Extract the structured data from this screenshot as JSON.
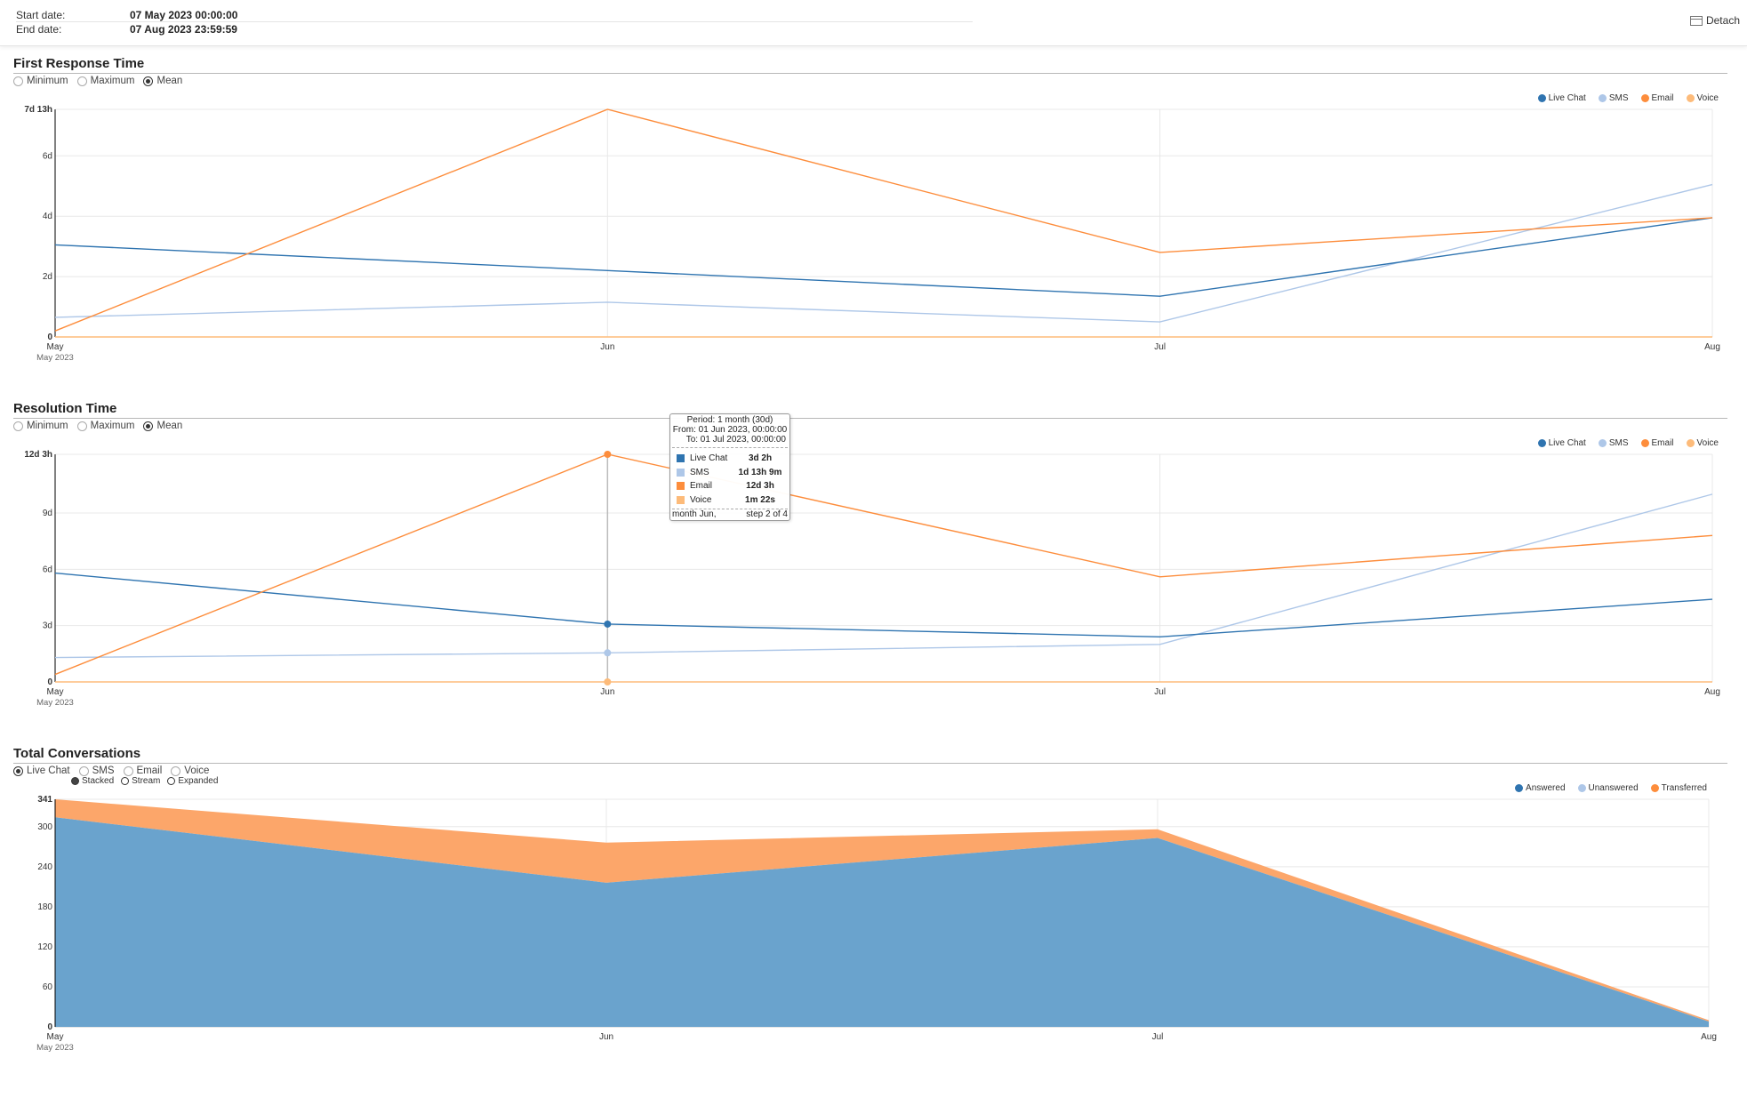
{
  "header": {
    "start_label": "Start date:",
    "start_value": "07 May 2023 00:00:00",
    "end_label": "End date:",
    "end_value": "07 Aug 2023 23:59:59",
    "detach_label": "Detach"
  },
  "colors": {
    "live_chat": "#2f74b0",
    "sms": "#aec7e8",
    "email": "#fd8d3c",
    "voice": "#fdbb7a",
    "answered": "#2f74b0",
    "unanswered": "#aec7e8",
    "transferred": "#fd8d3c",
    "area_answered": "#6aa3cd",
    "area_transferred": "#fca66a"
  },
  "frt": {
    "title": "First Response Time",
    "options": [
      {
        "label": "Minimum",
        "selected": false
      },
      {
        "label": "Maximum",
        "selected": false
      },
      {
        "label": "Mean",
        "selected": true
      }
    ],
    "legend": [
      "Live Chat",
      "SMS",
      "Email",
      "Voice"
    ]
  },
  "rt": {
    "title": "Resolution Time",
    "options": [
      {
        "label": "Minimum",
        "selected": false
      },
      {
        "label": "Maximum",
        "selected": false
      },
      {
        "label": "Mean",
        "selected": true
      }
    ],
    "legend": [
      "Live Chat",
      "SMS",
      "Email",
      "Voice"
    ]
  },
  "tc": {
    "title": "Total Conversations",
    "options": [
      {
        "label": "Live Chat",
        "selected": true
      },
      {
        "label": "SMS",
        "selected": false
      },
      {
        "label": "Email",
        "selected": false
      },
      {
        "label": "Voice",
        "selected": false
      }
    ],
    "modes": [
      {
        "label": "Stacked",
        "selected": true
      },
      {
        "label": "Stream",
        "selected": false
      },
      {
        "label": "Expanded",
        "selected": false
      }
    ],
    "legend": [
      "Answered",
      "Unanswered",
      "Transferred"
    ]
  },
  "tooltip": {
    "period": "Period: 1 month (30d)",
    "from": "From: 01 Jun 2023, 00:00:00",
    "to": "To: 01 Jul 2023, 00:00:00",
    "rows": [
      {
        "name": "Live Chat",
        "value": "3d 2h"
      },
      {
        "name": "SMS",
        "value": "1d 13h 9m"
      },
      {
        "name": "Email",
        "value": "12d 3h"
      },
      {
        "name": "Voice",
        "value": "1m 22s"
      }
    ],
    "footer_left": "month Jun,",
    "footer_right": "step 2 of 4"
  },
  "chart_data": [
    {
      "type": "line",
      "title": "First Response Time",
      "x": [
        "May",
        "Jun",
        "Jul",
        "Aug"
      ],
      "x_sublabel": "May 2023",
      "y_unit": "days",
      "ylim": [
        0,
        7.54
      ],
      "y_ticks": [
        0,
        2,
        4,
        6,
        7.54
      ],
      "y_tick_labels": [
        "0",
        "2d",
        "4d",
        "6d",
        "7d 13h"
      ],
      "series": [
        {
          "name": "Live Chat",
          "values": [
            3.05,
            2.2,
            1.35,
            3.95
          ]
        },
        {
          "name": "SMS",
          "values": [
            0.65,
            1.15,
            0.5,
            5.05
          ]
        },
        {
          "name": "Email",
          "values": [
            0.2,
            7.54,
            2.8,
            3.95
          ]
        },
        {
          "name": "Voice",
          "values": [
            0,
            0,
            0,
            0
          ]
        }
      ]
    },
    {
      "type": "line",
      "title": "Resolution Time",
      "x": [
        "May",
        "Jun",
        "Jul",
        "Aug"
      ],
      "x_sublabel": "May 2023",
      "y_unit": "days",
      "ylim": [
        0,
        12.125
      ],
      "y_ticks": [
        0,
        3,
        6,
        9,
        12.125
      ],
      "y_tick_labels": [
        "0",
        "3d",
        "6d",
        "9d",
        "12d 3h"
      ],
      "series": [
        {
          "name": "Live Chat",
          "values": [
            5.8,
            3.08,
            2.4,
            4.4
          ]
        },
        {
          "name": "SMS",
          "values": [
            1.3,
            1.55,
            2.0,
            10.0
          ]
        },
        {
          "name": "Email",
          "values": [
            0.4,
            12.125,
            5.6,
            7.8
          ]
        },
        {
          "name": "Voice",
          "values": [
            0,
            0,
            0,
            0
          ]
        }
      ]
    },
    {
      "type": "area",
      "title": "Total Conversations",
      "stacked": true,
      "x": [
        "May",
        "Jun",
        "Jul",
        "Aug"
      ],
      "x_sublabel": "May 2023",
      "ylim": [
        0,
        341
      ],
      "y_ticks": [
        0,
        60,
        120,
        180,
        240,
        300,
        341
      ],
      "y_tick_labels": [
        "0",
        "60",
        "120",
        "180",
        "240",
        "300",
        "341"
      ],
      "series": [
        {
          "name": "Answered",
          "values": [
            314,
            216,
            283,
            8
          ]
        },
        {
          "name": "Unanswered",
          "values": [
            0,
            0,
            0,
            0
          ]
        },
        {
          "name": "Transferred",
          "values": [
            27,
            60,
            13,
            2
          ]
        }
      ]
    }
  ]
}
